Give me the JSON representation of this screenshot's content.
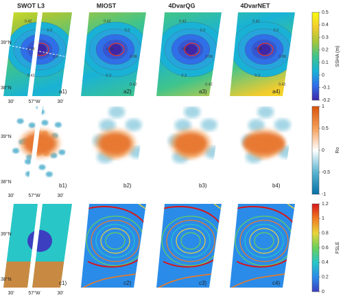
{
  "columns": [
    "SWOT L3",
    "MIOST",
    "4DvarQG",
    "4DvarNET"
  ],
  "lat_labels": [
    "39°N",
    "38°N"
  ],
  "lon_labels": [
    "30'",
    "57°W",
    "30'"
  ],
  "rows": [
    {
      "panels": [
        "a1)",
        "a2)",
        "a3)",
        "a4)"
      ],
      "contour_labels": [
        [
          "0.42",
          "0.3",
          "0.18",
          "0.3",
          "0.42"
        ],
        [
          "0.42",
          "0.3",
          "0.18",
          "0.06",
          "0.3",
          "0.42"
        ],
        [
          "0.42",
          "0.3",
          "0.18",
          "0.06",
          "0.3",
          "0.42"
        ],
        [
          "0.42",
          "0.3",
          "0.18",
          "0.06",
          "0.3",
          "0.42"
        ]
      ],
      "colorbar": {
        "label": "SSHA (m)",
        "lim": [
          -0.2,
          0.5
        ],
        "ticks": [
          0.5,
          0.4,
          0.3,
          0.2,
          0.1,
          0,
          -0.1,
          -0.2
        ],
        "colors": [
          "#3e26a8",
          "#2f6fe8",
          "#19b2d6",
          "#3fc48c",
          "#a6c63a",
          "#f2cc2e",
          "#f9fb0e"
        ]
      }
    },
    {
      "panels": [
        "b1)",
        "b2)",
        "b3)",
        "b4)"
      ],
      "colorbar": {
        "label": "Ro",
        "lim": [
          -1,
          1
        ],
        "ticks": [
          1,
          0.5,
          0,
          -0.5,
          -1
        ],
        "colors": [
          "#0570a8",
          "#5ab4d0",
          "#ffffff",
          "#f5a05a",
          "#d9530b"
        ]
      }
    },
    {
      "panels": [
        "c1)",
        "c2)",
        "c3)",
        "c4)"
      ],
      "colorbar": {
        "label": "FSLE",
        "lim": [
          0,
          1.2
        ],
        "ticks": [
          1.2,
          1,
          0.8,
          0.6,
          0.4,
          0.2,
          0
        ],
        "colors": [
          "#3b3fc0",
          "#2a8ce8",
          "#28c6c6",
          "#6ad05a",
          "#e8d43a",
          "#f07a22",
          "#d6161c"
        ]
      }
    }
  ]
}
